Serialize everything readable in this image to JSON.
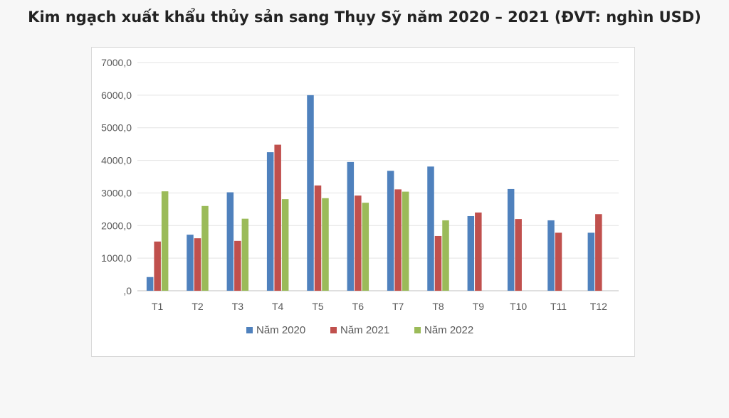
{
  "chart_data": {
    "type": "bar",
    "title": "Kim ngạch xuất khẩu thủy sản sang Thụy Sỹ năm 2020 – 2021 (ĐVT: nghìn USD)",
    "categories": [
      "T1",
      "T2",
      "T3",
      "T4",
      "T5",
      "T6",
      "T7",
      "T8",
      "T9",
      "T10",
      "T11",
      "T12"
    ],
    "series": [
      {
        "name": "Năm 2020",
        "color": "#4f81bd",
        "values": [
          420,
          1720,
          3020,
          4250,
          6000,
          3950,
          3680,
          3810,
          2290,
          3120,
          2160,
          1780
        ]
      },
      {
        "name": "Năm 2021",
        "color": "#c0504d",
        "values": [
          1510,
          1610,
          1530,
          4480,
          3230,
          2920,
          3110,
          1680,
          2400,
          2200,
          1780,
          2350
        ]
      },
      {
        "name": "Năm 2022",
        "color": "#9bbb59",
        "values": [
          3050,
          2600,
          2210,
          2810,
          2840,
          2700,
          3040,
          2160,
          null,
          null,
          null,
          null
        ]
      }
    ],
    "yticks": [
      "0",
      "1000,0",
      "2000,0",
      "3000,0",
      "4000,0",
      "5000,0",
      "6000,0",
      "7000,0"
    ],
    "ytick_labels": [
      ",0",
      "1000,0",
      "2000,0",
      "3000,0",
      "4000,0",
      "5000,0",
      "6000,0",
      "7000,0"
    ],
    "ylim": [
      0,
      7000
    ],
    "grid": true,
    "legend_position": "bottom"
  }
}
